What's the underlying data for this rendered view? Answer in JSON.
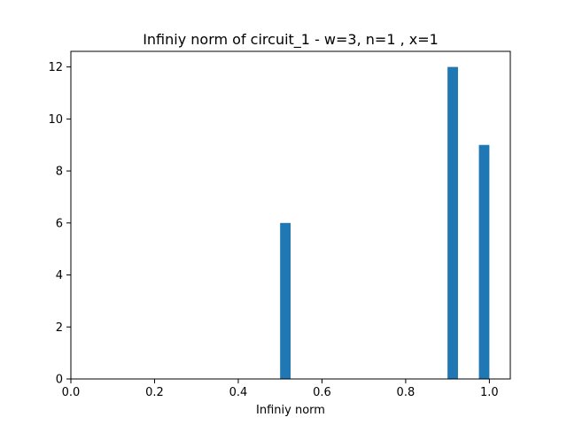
{
  "chart_data": {
    "type": "bar",
    "title": "Infiniy norm of circuit_1 - w=3, n=1 , x=1",
    "xlabel": "Infiniy norm",
    "ylabel": "",
    "xlim": [
      0.0,
      1.05
    ],
    "ylim": [
      0,
      12.6
    ],
    "xticks": [
      0.0,
      0.2,
      0.4,
      0.6,
      0.8,
      1.0
    ],
    "xtick_labels": [
      "0.0",
      "0.2",
      "0.4",
      "0.6",
      "0.8",
      "1.0"
    ],
    "yticks": [
      0,
      2,
      4,
      6,
      8,
      10,
      12
    ],
    "ytick_labels": [
      "0",
      "2",
      "4",
      "6",
      "8",
      "10",
      "12"
    ],
    "bin_width": 0.025,
    "bars": [
      {
        "x_start": 0.5,
        "x_end": 0.525,
        "value": 6
      },
      {
        "x_start": 0.9,
        "x_end": 0.925,
        "value": 12
      },
      {
        "x_start": 0.975,
        "x_end": 1.0,
        "value": 9
      }
    ],
    "bar_color": "#1f77b4",
    "grid": false,
    "legend": "none"
  }
}
